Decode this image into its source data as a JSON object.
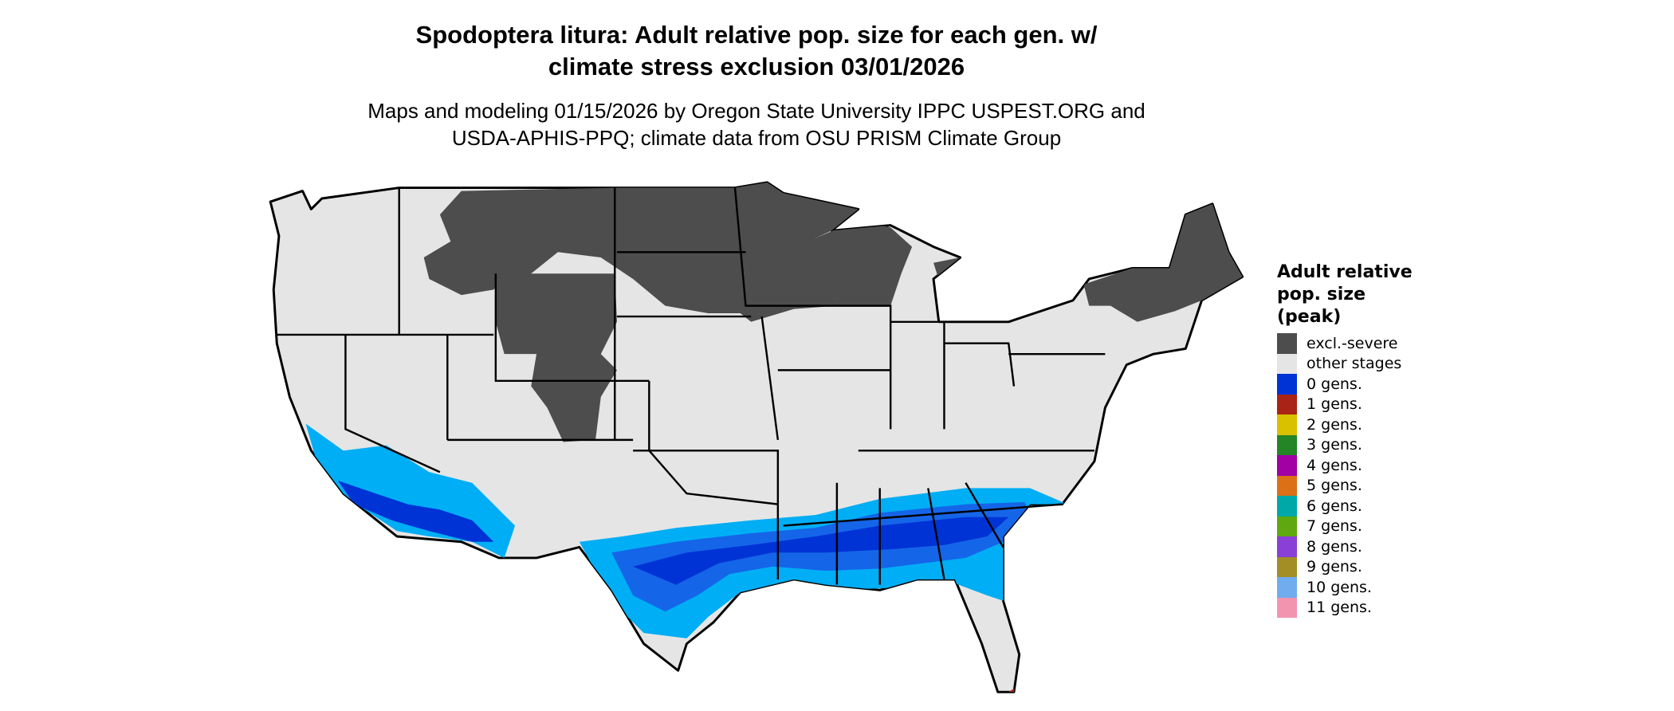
{
  "title": {
    "line1": "Spodoptera litura: Adult relative pop. size for each gen. w/",
    "line2": "climate stress exclusion 03/01/2026"
  },
  "subtitle": {
    "line1": "Maps and modeling 01/15/2026 by Oregon State University IPPC USPEST.ORG and",
    "line2": "USDA-APHIS-PPQ; climate data from OSU PRISM Climate Group"
  },
  "map": {
    "region": "contiguous United States",
    "colors": {
      "base": "#e5e5e5",
      "excluded": "#4d4d4d",
      "blue_dark": "#0033d6",
      "blue_mid": "#1565e8",
      "blue_light": "#00aef5",
      "border": "#000000"
    }
  },
  "legend": {
    "title_lines": [
      "Adult relative",
      "pop. size",
      "(peak)"
    ],
    "items": [
      {
        "label": "excl.-severe",
        "color": "#4d4d4d"
      },
      {
        "label": "other stages",
        "color": "#e5e5e5"
      },
      {
        "label": "0 gens.",
        "color": "#0033d6"
      },
      {
        "label": "1 gens.",
        "color": "#a92416"
      },
      {
        "label": "2 gens.",
        "color": "#d9c100"
      },
      {
        "label": "3 gens.",
        "color": "#238526"
      },
      {
        "label": "4 gens.",
        "color": "#a200a4"
      },
      {
        "label": "5 gens.",
        "color": "#db7016"
      },
      {
        "label": "6 gens.",
        "color": "#00a8a8"
      },
      {
        "label": "7 gens.",
        "color": "#5fa80f"
      },
      {
        "label": "8 gens.",
        "color": "#8a3fd6"
      },
      {
        "label": "9 gens.",
        "color": "#a38d25"
      },
      {
        "label": "10 gens.",
        "color": "#70acee"
      },
      {
        "label": "11 gens.",
        "color": "#f294b0"
      }
    ]
  }
}
